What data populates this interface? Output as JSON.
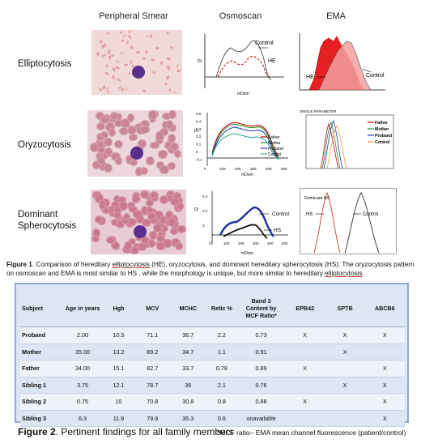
{
  "figure1": {
    "column_headers": [
      "Peripheral Smear",
      "Osmoscan",
      "EMA"
    ],
    "row_labels": [
      "Elliptocytosis",
      "Oryzocytosis",
      "Dominant\nSpherocytosis"
    ],
    "row_label_lines": [
      [
        "Elliptocytosis"
      ],
      [
        "Oryzocytosis"
      ],
      [
        "Dominant",
        "Spherocytosis"
      ]
    ],
    "osmo1": {
      "ylabel": "DI",
      "xlabel": "mOsm",
      "labels": [
        "Control",
        "HE"
      ]
    },
    "osmo2": {
      "yticks": [
        "0.5",
        "0.4",
        "0.3",
        "0.2",
        "0.1",
        "0",
        "-0.1"
      ],
      "xticks": [
        "0",
        "100",
        "200",
        "300",
        "400",
        "500"
      ],
      "xlabel": "mOsm",
      "ylabel": "DI",
      "legend": [
        "Father",
        "Mother",
        "Proband",
        "Control"
      ]
    },
    "osmo3": {
      "yticks": [
        "0.4",
        "0.2",
        "0"
      ],
      "xticks": [
        "0",
        "100",
        "200",
        "300",
        "400",
        "500"
      ],
      "ylabel": "DI",
      "xlabel": "mOsm",
      "labels": [
        "Control",
        "HS"
      ]
    },
    "ema1": {
      "labels": [
        "HE",
        "Control"
      ]
    },
    "ema2": {
      "title": "SINGLE PARAMETER",
      "legend": [
        "Father",
        "Mother",
        "Proband",
        "Control"
      ]
    },
    "ema3": {
      "labels": [
        "Dominant HS",
        "HS",
        "Control"
      ]
    },
    "caption": {
      "bold": "Figure 1",
      "text_parts": [
        ". Comparison of hereditary ",
        "elliptocytosis",
        " (HE), oryzocytosis, and dominant hereditary spherocytosis (HS). The oryzocytosis pattern on osmoscan and EMA is most similar  to HS , while the morphology is unique, but more similar to hereditary ",
        "elliptocytosis",
        "."
      ]
    }
  },
  "colors": {
    "father": "#c00000",
    "mother": "#2e8b2e",
    "proband": "#1f3f9f",
    "control": "#f0a030",
    "osmo_control": "#555555",
    "he": "#c00000",
    "hs_blue": "#1f2fa0",
    "table_bg": "#dde6f3",
    "table_border": "#8fa8cf"
  },
  "table": {
    "headers": [
      "Subject",
      "Age in years",
      "Hgb",
      "MCV",
      "MCHC",
      "Retic %",
      "Band 3\nContent by\nMCF Ratio*",
      "EPB42",
      "SPTB",
      "ABCB6"
    ],
    "rows": [
      [
        "Proband",
        "2.00",
        "10.5",
        "71.1",
        "36.7",
        "2.2",
        "0.73",
        "X",
        "X",
        "X"
      ],
      [
        "Mother",
        "35.00",
        "13.2",
        "89.2",
        "34.7",
        "1.1",
        "0.91",
        "",
        "X",
        ""
      ],
      [
        "Father",
        "34.00",
        "15.1",
        "82.7",
        "33.7",
        "0.78",
        "0.89",
        "X",
        "",
        "X"
      ],
      [
        "Sibling  1",
        "3.75",
        "12.1",
        "78.7",
        "36",
        "2.1",
        "0.76",
        "",
        "X",
        "X"
      ],
      [
        "Sibling  2",
        "0.75",
        "10",
        "70.8",
        "30.8",
        "0.8",
        "0.88",
        "X",
        "",
        "X"
      ],
      [
        "Sibling 3",
        "6.3",
        "11.9",
        "79.9",
        "35.3",
        "0.6",
        "unavailable",
        "",
        "",
        "X"
      ]
    ]
  },
  "figure2": {
    "title": "Figure 2",
    "title_rest": ". Pertinent findings for all family members",
    "note": "*MCF ratio– EMA mean channel fluorescence (patient/control)"
  }
}
